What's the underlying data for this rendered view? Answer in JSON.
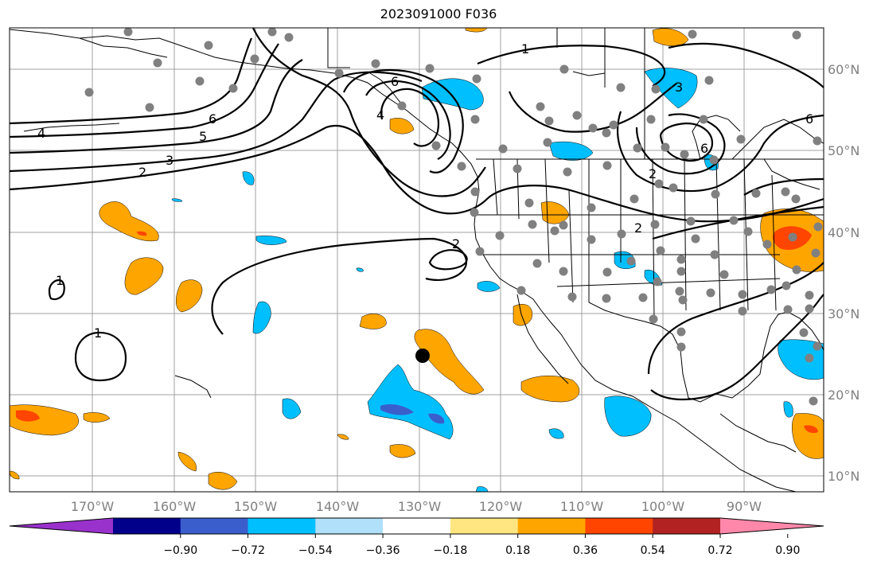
{
  "title": "2023091000 F036",
  "axes": {
    "lon_ticks": [
      "170°W",
      "160°W",
      "150°W",
      "140°W",
      "130°W",
      "120°W",
      "110°W",
      "100°W",
      "90°W"
    ],
    "lat_ticks": [
      "60°N",
      "50°N",
      "40°N",
      "30°N",
      "20°N",
      "10°N"
    ]
  },
  "colorbar": {
    "levels": [
      "−0.90",
      "−0.72",
      "−0.54",
      "−0.36",
      "−0.18",
      "0.18",
      "0.36",
      "0.54",
      "0.72",
      "0.90"
    ],
    "colors": [
      "#9932cc",
      "#00008b",
      "#3a5fcd",
      "#00bfff",
      "#b0e0fa",
      "#ffffff",
      "#ffe680",
      "#ffa500",
      "#ff4500",
      "#b22222",
      "#ff88aa"
    ]
  },
  "contour_labels": [
    "1",
    "6",
    "4",
    "6",
    "5",
    "4",
    "3",
    "2",
    "2",
    "1",
    "1",
    "3",
    "6",
    "2",
    "2",
    "6"
  ],
  "colors": {
    "grid": "#a0a0a0",
    "coast": "#000000",
    "station": "#808080",
    "marker": "#000000"
  }
}
